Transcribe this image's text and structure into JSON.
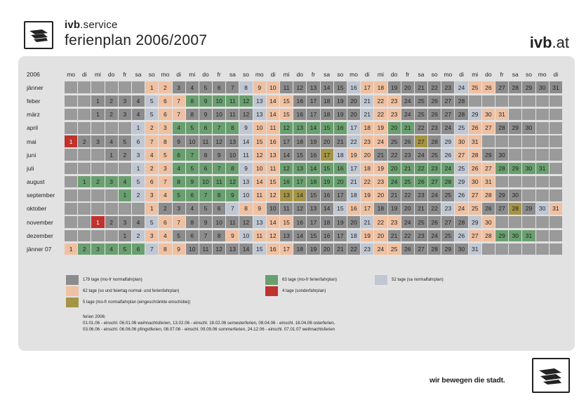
{
  "header": {
    "brand_bold": "ivb",
    "brand_rest": ".service",
    "title": "ferienplan 2006/2007",
    "site_bold": "ivb",
    "site_rest": ".at"
  },
  "calendar": {
    "year_label": "2006",
    "weekdays": [
      "mo",
      "di",
      "mi",
      "do",
      "fr",
      "sa",
      "so",
      "mo",
      "di",
      "mi",
      "do",
      "fr",
      "sa",
      "so",
      "mo",
      "di",
      "mi",
      "do",
      "fr",
      "sa",
      "so",
      "mo",
      "di",
      "mi",
      "do",
      "fr",
      "sa",
      "so",
      "mo",
      "di",
      "mi",
      "do",
      "fr",
      "sa",
      "so",
      "mo",
      "di"
    ],
    "months": [
      {
        "name": "jänner",
        "offset": 6,
        "days": 31,
        "types": "SSWWWWWASSWWWWWASSWWWWWASSWWWWW"
      },
      {
        "name": "feber",
        "offset": 2,
        "days": 28,
        "types": "WWWWASSFFFFFASSWWWWWASSWWWWWAS"
      },
      {
        "name": "märz",
        "offset": 2,
        "days": 31,
        "types": "WWWWASSWWWWWASSWWWWWASSWWWWWASSWW"
      },
      {
        "name": "april",
        "offset": 5,
        "days": 30,
        "types": "ASSFFFFFASSFFFFFASSFFWWWASSWWWWWAS"
      },
      {
        "name": "mai",
        "offset": 0,
        "days": 31,
        "types": "EWWWWASSWWWWWASSWWWWWASSWWRWASSWW"
      },
      {
        "name": "juni",
        "offset": 3,
        "days": 30,
        "types": "WWASSFFWWWASSWWWRASSWWWWWASSWWW"
      },
      {
        "name": "juli",
        "offset": 5,
        "days": 31,
        "types": "ASSFFFFFASSFFFFFASSFFFFFASSFFFFFASSF"
      },
      {
        "name": "august",
        "offset": 1,
        "days": 31,
        "types": "FFFFASSFFFFFASSFFFFFASSFFFFFASSFFF"
      },
      {
        "name": "september",
        "offset": 4,
        "days": 30,
        "types": "FASSFFFFFASSRRWWWASSWWWWWASSWWWWWAS"
      },
      {
        "name": "oktober",
        "offset": 6,
        "days": 31,
        "types": "SWWWWWASSWWWWWASSWWWWWASSWWRWASSWW"
      },
      {
        "name": "november",
        "offset": 2,
        "days": 30,
        "types": "EWWWASSWWWWWASSWWWWWASSWWWWWASSWW"
      },
      {
        "name": "dezember",
        "offset": 4,
        "days": 31,
        "types": "WASSWWWWSASSWWWWWASSWWWWWASSFFFAE"
      },
      {
        "name": "jänner 07",
        "offset": 0,
        "days": 31,
        "types": "SFFFFFASSWWWWWASSWWWWWASSWWWWWASSWW"
      }
    ]
  },
  "legend": [
    {
      "color": "#8c8c8c",
      "text": "179 tage (mo-fr normalfahrplan)"
    },
    {
      "color": "#6a9f70",
      "text": "63 tage (mo-fr ferienfahrplan)"
    },
    {
      "color": "#c0c7d3",
      "text": "52 tage (sa normalfahrplan)"
    },
    {
      "color": "#efc1a2",
      "text": "62 tage (so und feiertag normal- und ferienfahrplan)"
    },
    {
      "color": "#c0322e",
      "text": "4 tage (sonderfahrplan)"
    },
    {
      "color": "#a49445",
      "text": "5 tage (mo-fr normalfahrplan (eingeschränkte einschübe))"
    }
  ],
  "notes": {
    "heading": "ferien 2006:",
    "line1": "01.01.06 - einschl. 06.01.06 weihnachtsferien, 13.02.06 - einschl. 18.02.06 semesterferien, 08.04.06 - einschl. 18.04.06 osterferien,",
    "line2": "03.06.06 - einschl. 06.06.06 pfingstferien, 08.07.06 - einschl. 09.09.06 sommerferien, 24.12.06 - einschl. 07.01.07 weihnachtsferien"
  },
  "footer": {
    "tagline": "wir bewegen die stadt."
  }
}
